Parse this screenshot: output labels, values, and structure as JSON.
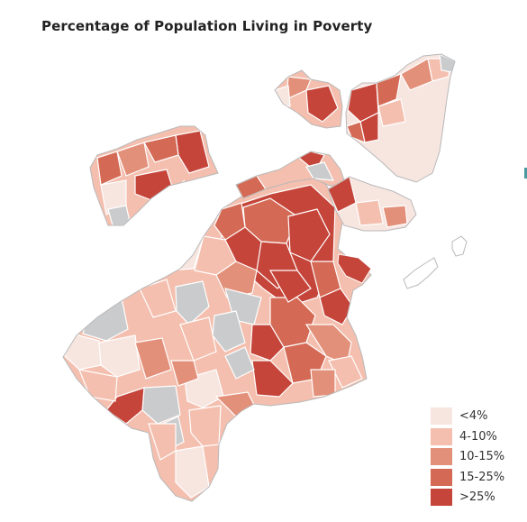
{
  "title": "Percentage of Population Living in Poverty",
  "colors": {
    "c0": "#f7e5e0",
    "c1": "#f4bfae",
    "c2": "#e3907a",
    "c3": "#d46a55",
    "c4": "#c5453a",
    "nodata": "#c9cbcd",
    "stroke": "#ffffff",
    "outline": "#b9b9b9"
  },
  "legend": [
    {
      "label": "<4%",
      "color": "#f7e5e0"
    },
    {
      "label": "4-10%",
      "color": "#f4bfae"
    },
    {
      "label": "10-15%",
      "color": "#e3907a"
    },
    {
      "label": "15-25%",
      "color": "#d46a55"
    },
    {
      "label": ">25%",
      "color": "#c5453a"
    }
  ]
}
